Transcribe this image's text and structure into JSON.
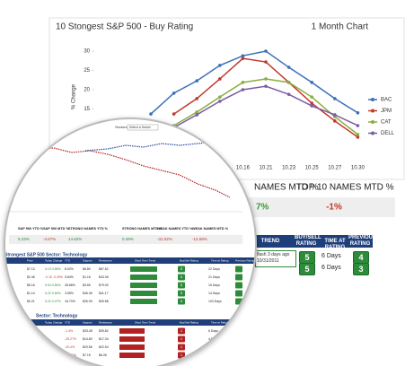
{
  "chart_data": {
    "type": "line",
    "title": "10 Stongest S&P 500 - Buy Rating",
    "subtitle": "1 Month Chart",
    "y_label": "% Change",
    "categories": [
      null,
      null,
      null,
      null,
      "10.16",
      "10.21",
      "10.23",
      "10.25",
      "10.27",
      "10.30"
    ],
    "series": [
      {
        "name": "BAC",
        "color": "#3a6fb8",
        "values": [
          13.7,
          19.1,
          22.3,
          26.3,
          28.8,
          30,
          25.8,
          21.9,
          17.7,
          14.0
        ]
      },
      {
        "name": "JPM",
        "color": "#c0392b",
        "values": [
          null,
          13.7,
          17.7,
          22.8,
          28.1,
          27.2,
          21.9,
          16.5,
          11.9,
          7.7
        ]
      },
      {
        "name": "CAT",
        "color": "#8aae3e",
        "values": [
          null,
          10.7,
          14.2,
          18.1,
          21.9,
          22.8,
          21.9,
          18.1,
          13.0,
          8.4
        ]
      },
      {
        "name": "DELL",
        "color": "#7d5ba6",
        "values": [
          null,
          10.2,
          13.5,
          17.0,
          20.0,
          20.9,
          18.8,
          15.8,
          13.5,
          10.7
        ]
      }
    ],
    "ylim": [
      0,
      30
    ],
    "yticks": [
      10,
      15,
      20,
      25,
      30
    ],
    "legend": "right"
  },
  "summary": {
    "left_label": "NAMES MTD %",
    "left_value": "7%",
    "right_label": "TOP 10 NAMES MTD %",
    "right_value": "-1%"
  },
  "right_table": {
    "headers": [
      "TREND",
      "BUY/SELL RATING",
      "TIME AT RATING",
      "PREVIOUS RATING"
    ],
    "rows": [
      [
        "flash 3 days ago 10/31/2011",
        "5",
        "6 Days",
        "4"
      ],
      [
        "",
        "5",
        "6 Days",
        "3"
      ]
    ]
  },
  "inset": {
    "sectors_label": "Sectors",
    "select": "Select a Sector",
    "stats": [
      [
        "S&P 500 YTD %",
        "5.23%"
      ],
      [
        "S&P 500 MTD %",
        "-4.67%"
      ],
      [
        "STRONG NAMES YTD %",
        "14.62%"
      ],
      [
        "STRONG NAMES MTD %",
        "0.49%"
      ],
      [
        "WEAK NAMES YTD %",
        "-31.02%"
      ],
      [
        "WEAK NAMES MTD %",
        "-12.58%"
      ]
    ],
    "table1_title": "Strongest S&P 500 Sector: Technology",
    "table2_title": "Sector: Technology",
    "columns": [
      "Price",
      "Today Change",
      "YTD",
      "Support",
      "Resistance",
      "Short Term Trend",
      "Buy/Sell Rating",
      "Time at Rating",
      "Previous Rating"
    ],
    "rows1": [
      [
        "$7.13",
        "0.10 0.65%",
        "8.02%",
        "$6.80",
        "$67.62",
        "5",
        "22 Days"
      ],
      [
        "$2.46",
        "-0.10 -0.29%",
        "5.84%",
        "$1.16",
        "$43.36",
        "5",
        "21 Days"
      ],
      [
        "$5.16",
        "0.04 0.84%",
        "28.68%",
        "$3.69",
        "$79.00",
        "5",
        "16 Days"
      ],
      [
        "$1.14",
        "0.22 0.64%",
        "3.55%",
        "$46.36",
        "$41.17",
        "5",
        "14 Days"
      ],
      [
        "$0.21",
        "0.22 0.27%",
        "16.70%",
        "$26.99",
        "$30.88",
        "5",
        "103 Days"
      ]
    ],
    "rows2": [
      [
        "-1.4%",
        "$33.48",
        "$39.82",
        "1",
        "6 Days"
      ],
      [
        "-25.27%",
        "$14.80",
        "$17.34",
        "1",
        "4 Days"
      ],
      [
        "-20.4%",
        "$20.56",
        "$22.54",
        "1",
        "6 Days"
      ],
      [
        "-44.21%",
        "$7.15",
        "$6.26",
        "1",
        "4 Days"
      ]
    ]
  }
}
